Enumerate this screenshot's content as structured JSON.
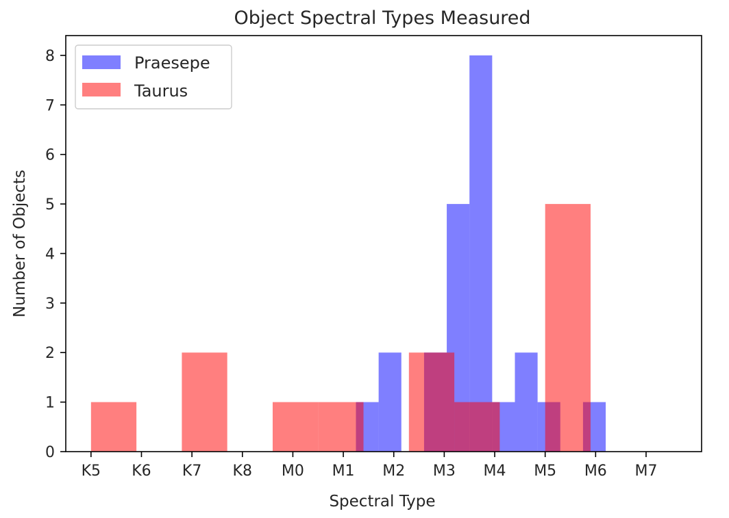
{
  "chart_data": {
    "type": "bar",
    "title": "Object Spectral Types Measured",
    "xlabel": "Spectral Type",
    "ylabel": "Number of Objects",
    "xlim": [
      -0.5,
      12.1
    ],
    "ylim": [
      0,
      8.4
    ],
    "x_ticks": [
      {
        "label": "K5",
        "value": 0
      },
      {
        "label": "K6",
        "value": 1
      },
      {
        "label": "K7",
        "value": 2
      },
      {
        "label": "K8",
        "value": 3
      },
      {
        "label": "M0",
        "value": 4
      },
      {
        "label": "M1",
        "value": 5
      },
      {
        "label": "M2",
        "value": 6
      },
      {
        "label": "M3",
        "value": 7
      },
      {
        "label": "M4",
        "value": 8
      },
      {
        "label": "M5",
        "value": 9
      },
      {
        "label": "M6",
        "value": 10
      },
      {
        "label": "M7",
        "value": 11
      }
    ],
    "y_ticks": [
      0,
      1,
      2,
      3,
      4,
      5,
      6,
      7,
      8
    ],
    "grid": false,
    "legend": {
      "placement": "top-left"
    },
    "series": [
      {
        "name": "Praesepe",
        "color": "#0000ff",
        "alpha": 0.5,
        "bins": [
          {
            "x0": 5.25,
            "x1": 5.7,
            "value": 1
          },
          {
            "x0": 5.7,
            "x1": 6.15,
            "value": 2
          },
          {
            "x0": 6.15,
            "x1": 6.6,
            "value": 0
          },
          {
            "x0": 6.6,
            "x1": 7.05,
            "value": 2
          },
          {
            "x0": 7.05,
            "x1": 7.5,
            "value": 5
          },
          {
            "x0": 7.5,
            "x1": 7.95,
            "value": 8
          },
          {
            "x0": 7.95,
            "x1": 8.4,
            "value": 1
          },
          {
            "x0": 8.4,
            "x1": 8.85,
            "value": 2
          },
          {
            "x0": 8.85,
            "x1": 9.3,
            "value": 1
          },
          {
            "x0": 9.3,
            "x1": 9.75,
            "value": 0
          },
          {
            "x0": 9.75,
            "x1": 10.2,
            "value": 1
          }
        ]
      },
      {
        "name": "Taurus",
        "color": "#ff0000",
        "alpha": 0.5,
        "bins": [
          {
            "x0": 0.0,
            "x1": 0.9,
            "value": 1
          },
          {
            "x0": 0.9,
            "x1": 1.8,
            "value": 0
          },
          {
            "x0": 1.8,
            "x1": 2.7,
            "value": 2
          },
          {
            "x0": 2.7,
            "x1": 3.6,
            "value": 0
          },
          {
            "x0": 3.6,
            "x1": 4.5,
            "value": 1
          },
          {
            "x0": 4.5,
            "x1": 5.4,
            "value": 1
          },
          {
            "x0": 5.4,
            "x1": 6.3,
            "value": 0
          },
          {
            "x0": 6.3,
            "x1": 7.2,
            "value": 2
          },
          {
            "x0": 7.2,
            "x1": 8.1,
            "value": 1
          },
          {
            "x0": 8.1,
            "x1": 9.0,
            "value": 0
          },
          {
            "x0": 9.0,
            "x1": 9.9,
            "value": 5
          }
        ]
      }
    ]
  }
}
